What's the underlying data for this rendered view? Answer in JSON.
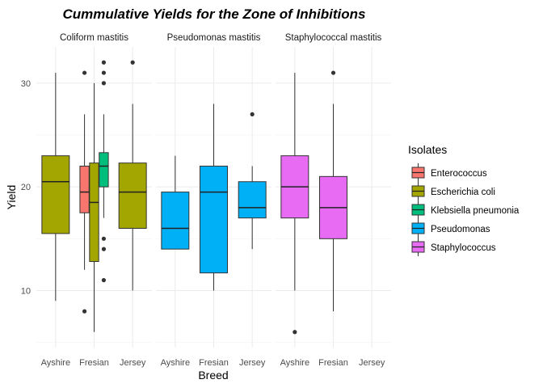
{
  "chart_data": {
    "type": "boxplot",
    "title": "Cummulative Yields for the Zone of Inhibitions",
    "xlabel": "Breed",
    "ylabel": "Yield",
    "ylim": [
      4.5,
      33.5
    ],
    "yticks": [
      10,
      20,
      30
    ],
    "categories": [
      "Ayshire",
      "Fresian",
      "Jersey"
    ],
    "facets": [
      "Coliform mastitis",
      "Pseudomonas mastitis",
      "Staphylococcal mastitis"
    ],
    "legend": {
      "title": "Isolates",
      "position": "right",
      "items": [
        {
          "name": "Enterococcus",
          "color": "#F8766D"
        },
        {
          "name": "Escherichia coli",
          "color": "#A3A500"
        },
        {
          "name": "Klebsiella pneumonia",
          "color": "#00BF7D"
        },
        {
          "name": "Pseudomonas",
          "color": "#00B0F6"
        },
        {
          "name": "Staphylococcus",
          "color": "#E76BF3"
        }
      ]
    },
    "boxes": [
      {
        "facet": 0,
        "breed": "Ayshire",
        "isolate": "Escherichia coli",
        "lower_whisker": 9,
        "q1": 15.5,
        "median": 20.5,
        "q3": 23,
        "upper_whisker": 31,
        "outliers": []
      },
      {
        "facet": 0,
        "breed": "Fresian",
        "isolate": "Enterococcus",
        "lower_whisker": 12,
        "q1": 17.5,
        "median": 19.5,
        "q3": 22,
        "upper_whisker": 27,
        "outliers": [
          8,
          31
        ]
      },
      {
        "facet": 0,
        "breed": "Fresian",
        "isolate": "Escherichia coli",
        "lower_whisker": 6,
        "q1": 12.8,
        "median": 18.5,
        "q3": 22.3,
        "upper_whisker": 30,
        "outliers": []
      },
      {
        "facet": 0,
        "breed": "Fresian",
        "isolate": "Klebsiella pneumonia",
        "lower_whisker": 17,
        "q1": 20,
        "median": 22,
        "q3": 23.3,
        "upper_whisker": 27,
        "outliers": [
          11,
          14,
          15,
          30,
          31,
          32
        ]
      },
      {
        "facet": 0,
        "breed": "Jersey",
        "isolate": "Escherichia coli",
        "lower_whisker": 10,
        "q1": 16,
        "median": 19.5,
        "q3": 22.3,
        "upper_whisker": 28,
        "outliers": [
          32
        ]
      },
      {
        "facet": 1,
        "breed": "Ayshire",
        "isolate": "Pseudomonas",
        "lower_whisker": 14,
        "q1": 14,
        "median": 16,
        "q3": 19.5,
        "upper_whisker": 23,
        "outliers": []
      },
      {
        "facet": 1,
        "breed": "Fresian",
        "isolate": "Pseudomonas",
        "lower_whisker": 10,
        "q1": 11.7,
        "median": 19.5,
        "q3": 22,
        "upper_whisker": 28,
        "outliers": []
      },
      {
        "facet": 1,
        "breed": "Jersey",
        "isolate": "Pseudomonas",
        "lower_whisker": 14,
        "q1": 17,
        "median": 18,
        "q3": 20.5,
        "upper_whisker": 22,
        "outliers": [
          27
        ]
      },
      {
        "facet": 2,
        "breed": "Ayshire",
        "isolate": "Staphylococcus",
        "lower_whisker": 10,
        "q1": 17,
        "median": 20,
        "q3": 23,
        "upper_whisker": 31,
        "outliers": [
          6
        ]
      },
      {
        "facet": 2,
        "breed": "Fresian",
        "isolate": "Staphylococcus",
        "lower_whisker": 8,
        "q1": 15,
        "median": 18,
        "q3": 21,
        "upper_whisker": 28,
        "outliers": [
          31
        ]
      }
    ]
  }
}
